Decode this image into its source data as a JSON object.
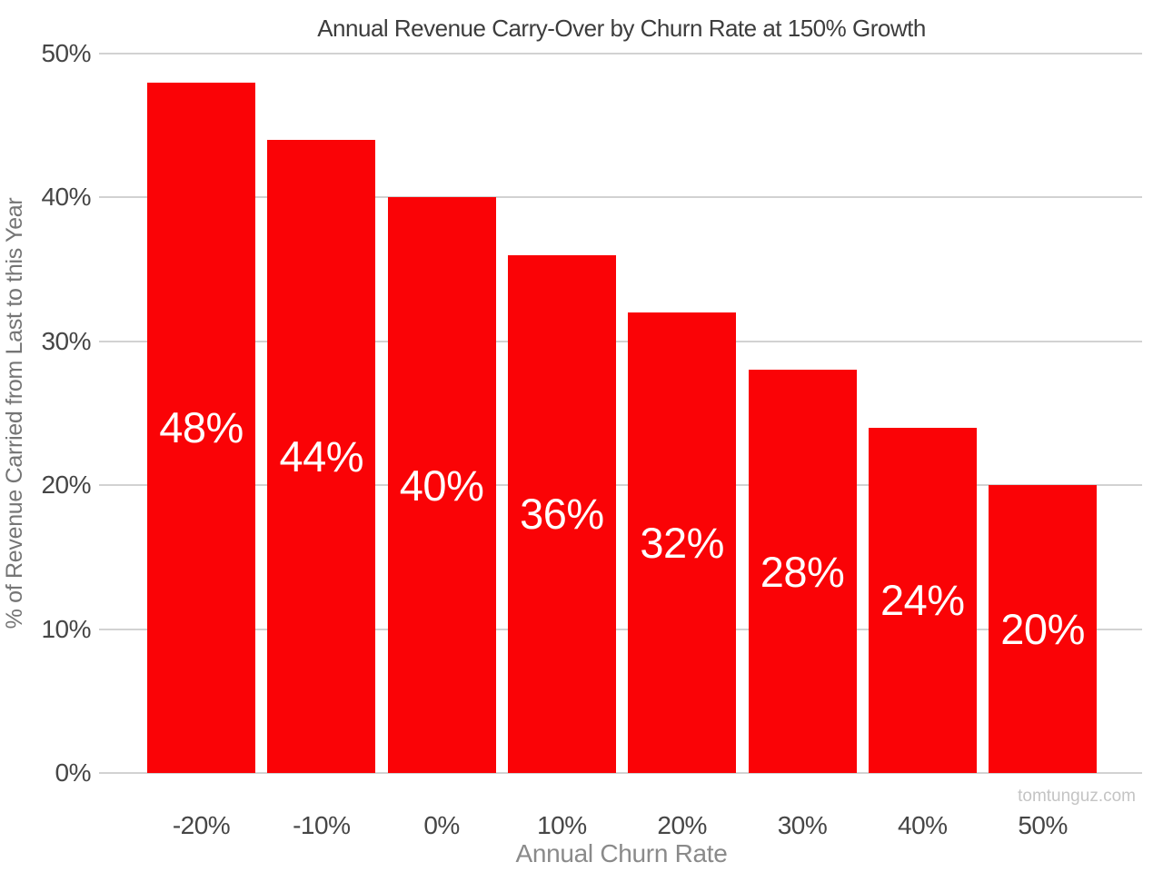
{
  "chart_data": {
    "type": "bar",
    "title": "Annual Revenue Carry-Over by Churn Rate at 150% Growth",
    "xlabel": "Annual Churn Rate",
    "ylabel": "% of Revenue Carried from Last to this Year",
    "categories": [
      "-20%",
      "-10%",
      "0%",
      "10%",
      "20%",
      "30%",
      "40%",
      "50%"
    ],
    "values": [
      48,
      44,
      40,
      36,
      32,
      28,
      24,
      20
    ],
    "bar_labels": [
      "48%",
      "44%",
      "40%",
      "36%",
      "32%",
      "28%",
      "24%",
      "20%"
    ],
    "ylim": [
      0,
      50
    ],
    "yticks": [
      0,
      10,
      20,
      30,
      40,
      50
    ],
    "ytick_labels": [
      "0%",
      "10%",
      "20%",
      "30%",
      "40%",
      "50%"
    ],
    "grid": "horizontal",
    "legend": "none",
    "bar_color": "#FA0306",
    "label_color": "#FFFFFF",
    "gridline_color": "#D2D2D2",
    "watermark": "tomtunguz.com"
  }
}
